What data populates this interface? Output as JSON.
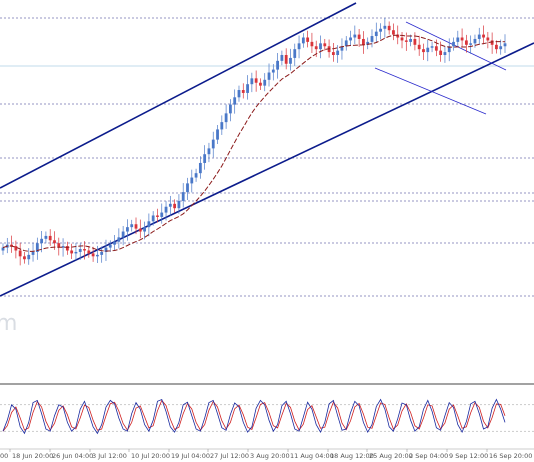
{
  "chart_data": {
    "type": "candlestick",
    "watermark_text": "m",
    "x_tick_labels": [
      "18 Jun 20:00",
      "26 Jun 04:00",
      "3 Jul 12:00",
      "10 Jul 20:00",
      "19 Jul 04:00",
      "27 Jul 12:00",
      "3 Aug 20:00",
      "11 Aug 04:00",
      "18 Aug 12:00",
      "25 Aug 20:00",
      "2 Sep 04:00",
      "9 Sep 12:00",
      "16 Sep 20:00"
    ],
    "x_tick_truncated_left": "00",
    "colors": {
      "bull_candle": "#4a78c8",
      "bear_candle": "#d9343a",
      "channel_line": "#0c1c8c",
      "moving_average": "#8b1a1a",
      "h_levels": "#2b2b88",
      "oscillator_main": "#1a2aa0",
      "oscillator_signal": "#d02020"
    },
    "candles_close": [
      0.44,
      0.46,
      0.45,
      0.42,
      0.38,
      0.36,
      0.39,
      0.41,
      0.47,
      0.5,
      0.52,
      0.49,
      0.47,
      0.44,
      0.45,
      0.42,
      0.4,
      0.41,
      0.43,
      0.42,
      0.4,
      0.38,
      0.39,
      0.41,
      0.44,
      0.46,
      0.48,
      0.51,
      0.55,
      0.58,
      0.6,
      0.57,
      0.55,
      0.58,
      0.62,
      0.66,
      0.65,
      0.68,
      0.72,
      0.74,
      0.71,
      0.76,
      0.82,
      0.88,
      0.92,
      0.95,
      1.02,
      1.08,
      1.12,
      1.18,
      1.25,
      1.3,
      1.36,
      1.42,
      1.47,
      1.52,
      1.5,
      1.56,
      1.6,
      1.57,
      1.55,
      1.59,
      1.64,
      1.66,
      1.72,
      1.76,
      1.7,
      1.74,
      1.8,
      1.84,
      1.88,
      1.85,
      1.82,
      1.8,
      1.84,
      1.82,
      1.78,
      1.76,
      1.79,
      1.82,
      1.86,
      1.88,
      1.9,
      1.87,
      1.83,
      1.85,
      1.89,
      1.92,
      1.94,
      1.96,
      1.93,
      1.9,
      1.88,
      1.86,
      1.85,
      1.87,
      1.83,
      1.8,
      1.78,
      1.81,
      1.82,
      1.79,
      1.76,
      1.78,
      1.82,
      1.85,
      1.88,
      1.86,
      1.83,
      1.84,
      1.87,
      1.9,
      1.88,
      1.86,
      1.83,
      1.8,
      1.82,
      1.84
    ],
    "oscillator_values": [
      20,
      45,
      80,
      70,
      30,
      15,
      40,
      85,
      90,
      60,
      25,
      20,
      55,
      80,
      75,
      40,
      20,
      30,
      70,
      88,
      60,
      30,
      15,
      35,
      75,
      90,
      82,
      50,
      25,
      20,
      60,
      85,
      70,
      35,
      20,
      45,
      88,
      92,
      65,
      30,
      18,
      40,
      80,
      86,
      55,
      25,
      20,
      50,
      85,
      90,
      60,
      28,
      22,
      58,
      84,
      75,
      40,
      18,
      30,
      72,
      90,
      80,
      45,
      20,
      35,
      78,
      88,
      60,
      25,
      20,
      52,
      86,
      70,
      35,
      18,
      40,
      82,
      90,
      55,
      22,
      25,
      62,
      88,
      78,
      40,
      18,
      35,
      76,
      92,
      70,
      30,
      20,
      48,
      84,
      80,
      45,
      20,
      30,
      70,
      90,
      65,
      28,
      22,
      55,
      85,
      74,
      35,
      18,
      42,
      82,
      88,
      60,
      25,
      30,
      72,
      92,
      70,
      40
    ]
  }
}
